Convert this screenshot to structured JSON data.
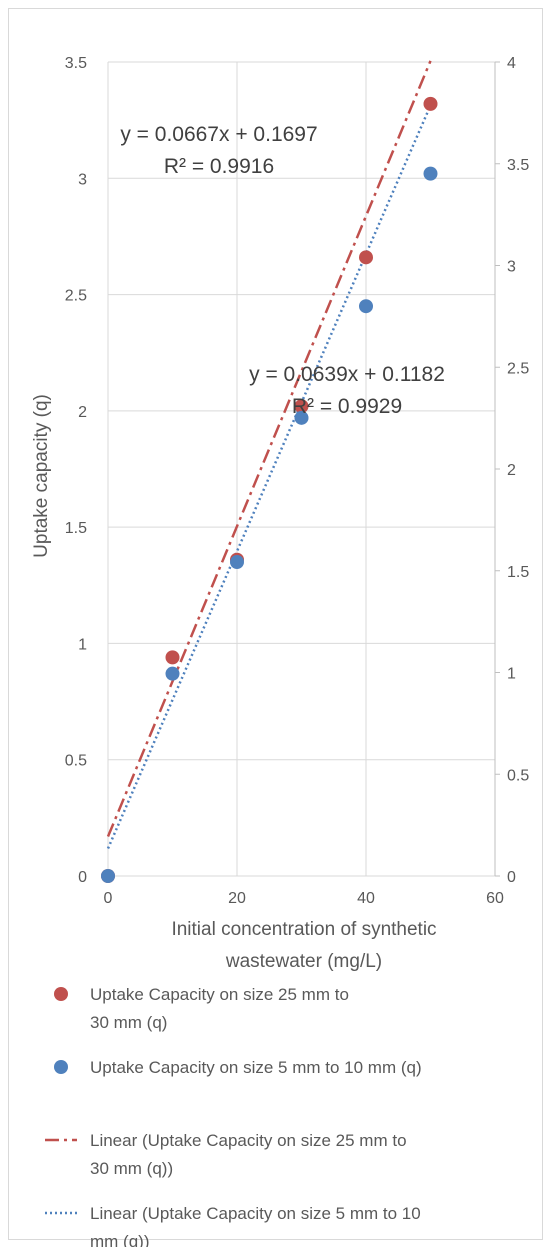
{
  "chart_data": {
    "type": "scatter",
    "title": "",
    "xlabel": "Initial concentration of synthetic wastewater (mg/L)",
    "xlabel_lines": [
      "Initial concentration of synthetic",
      "wastewater (mg/L)"
    ],
    "ylabel": "Uptake capacity (q)",
    "xlim": [
      0,
      60
    ],
    "ylim": [
      0,
      3.5
    ],
    "y2lim": [
      0,
      4
    ],
    "xticks": [
      "0",
      "20",
      "40",
      "60"
    ],
    "yticks": [
      "0",
      "0.5",
      "1",
      "1.5",
      "2",
      "2.5",
      "3",
      "3.5"
    ],
    "y2ticks": [
      "0",
      "0.5",
      "1",
      "1.5",
      "2",
      "2.5",
      "3",
      "3.5",
      "4"
    ],
    "grid": "vertical and horizontal major gridlines",
    "legend_position": "bottom",
    "series": [
      {
        "name": "Uptake Capacity on size 25 mm to 30 mm (q)",
        "color": "#c0504d",
        "marker": "circle",
        "x": [
          0,
          10,
          20,
          30,
          40,
          50
        ],
        "y": [
          0,
          0.94,
          1.36,
          2.02,
          2.66,
          3.32
        ]
      },
      {
        "name": "Uptake Capacity on size 5 mm to 10 mm (q)",
        "color": "#4f81bd",
        "marker": "circle",
        "x": [
          0,
          10,
          20,
          30,
          40,
          50
        ],
        "y": [
          0,
          0.87,
          1.35,
          1.97,
          2.45,
          3.02
        ]
      }
    ],
    "trendlines": [
      {
        "name": "Linear (Uptake Capacity on size 25 mm to 30 mm (q))",
        "color": "#c0504d",
        "style": "dash-dot",
        "slope": 0.0667,
        "intercept": 0.1697,
        "equation": "y = 0.0667x + 0.1697",
        "r2": "R² = 0.9916"
      },
      {
        "name": "Linear (Uptake Capacity on size 5 mm to 10 mm (q))",
        "color": "#4f81bd",
        "style": "dotted",
        "slope": 0.0639,
        "intercept": 0.1182,
        "equation": "y = 0.0639x + 0.1182",
        "r2": "R² = 0.9929"
      }
    ]
  }
}
